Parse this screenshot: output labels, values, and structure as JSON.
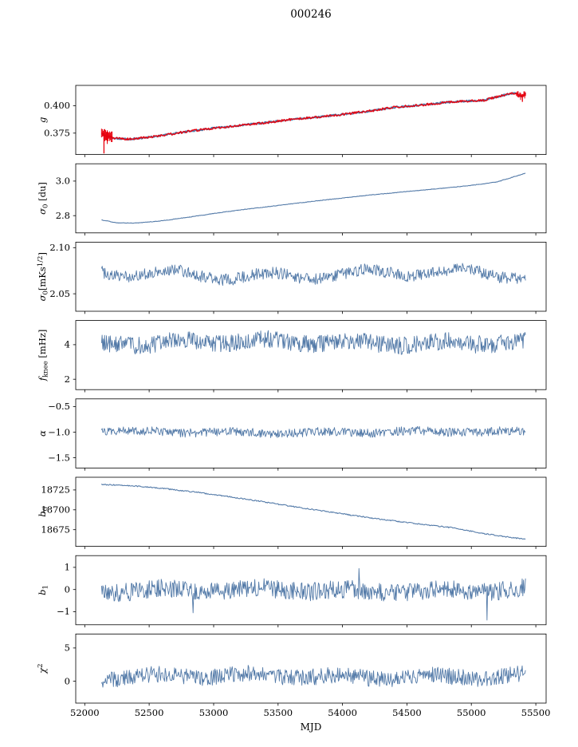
{
  "colors": {
    "blue": "#537aa8",
    "red": "#e8000d",
    "axis": "#000000",
    "background": "#ffffff"
  },
  "chart_data": {
    "type": "line",
    "title": "000246",
    "xlabel": "MJD",
    "xlim": [
      51930,
      55580
    ],
    "x_data_range": [
      52130,
      55420
    ],
    "xticks": [
      52000,
      52500,
      53000,
      53500,
      54000,
      54500,
      55000,
      55500
    ],
    "xtick_labels": [
      "52000",
      "52500",
      "53000",
      "53500",
      "54000",
      "54500",
      "55000",
      "55500"
    ],
    "legend": "none",
    "grid": false,
    "panels": [
      {
        "name": "g",
        "ylabel": [
          {
            "t": "g",
            "i": 1
          }
        ],
        "ylim": [
          0.3555,
          0.4185
        ],
        "yticks": [
          0.375,
          0.4
        ],
        "ytick_labels": [
          "0.375",
          "0.400"
        ],
        "series": [
          {
            "name": "g-model",
            "color": "blue",
            "kind": "trend",
            "lw": 2.0,
            "seed": 101,
            "noise": 0.0007,
            "points": [
              [
                52130,
                0.3745
              ],
              [
                52160,
                0.3725
              ],
              [
                52230,
                0.3705
              ],
              [
                52330,
                0.3695
              ],
              [
                52450,
                0.3705
              ],
              [
                52600,
                0.373
              ],
              [
                52800,
                0.3765
              ],
              [
                53000,
                0.3795
              ],
              [
                53200,
                0.382
              ],
              [
                53400,
                0.3845
              ],
              [
                53600,
                0.3875
              ],
              [
                53800,
                0.3895
              ],
              [
                54000,
                0.392
              ],
              [
                54200,
                0.395
              ],
              [
                54400,
                0.3985
              ],
              [
                54600,
                0.4005
              ],
              [
                54800,
                0.403
              ],
              [
                55000,
                0.4045
              ],
              [
                55100,
                0.405
              ],
              [
                55180,
                0.4075
              ],
              [
                55260,
                0.41
              ],
              [
                55340,
                0.4115
              ],
              [
                55390,
                0.4085
              ],
              [
                55420,
                0.411
              ]
            ]
          },
          {
            "name": "g-measured",
            "color": "red",
            "kind": "trend",
            "lw": 1.3,
            "seed": 102,
            "noise": 0.0011,
            "points": [
              [
                52130,
                0.3745
              ],
              [
                52160,
                0.3725
              ],
              [
                52230,
                0.3705
              ],
              [
                52330,
                0.3695
              ],
              [
                52450,
                0.3705
              ],
              [
                52600,
                0.373
              ],
              [
                52800,
                0.3765
              ],
              [
                53000,
                0.3795
              ],
              [
                53200,
                0.382
              ],
              [
                53400,
                0.3845
              ],
              [
                53600,
                0.3875
              ],
              [
                53800,
                0.3895
              ],
              [
                54000,
                0.392
              ],
              [
                54200,
                0.395
              ],
              [
                54400,
                0.3985
              ],
              [
                54600,
                0.4005
              ],
              [
                54800,
                0.403
              ],
              [
                55000,
                0.4045
              ],
              [
                55100,
                0.405
              ],
              [
                55180,
                0.4075
              ],
              [
                55260,
                0.41
              ],
              [
                55340,
                0.4115
              ],
              [
                55390,
                0.4085
              ],
              [
                55420,
                0.411
              ]
            ],
            "errorbars": [
              {
                "x0": 52130,
                "x1": 52215,
                "amp": 0.0042
              },
              {
                "x0": 55350,
                "x1": 55420,
                "amp": 0.0022
              }
            ],
            "spikes": [
              {
                "x": 52149,
                "y0": 0.3565,
                "y1": 0.3755
              },
              {
                "x": 55396,
                "y0": 0.4035,
                "y1": 0.4105
              }
            ]
          }
        ]
      },
      {
        "name": "sigma0-du",
        "ylabel": [
          {
            "t": "σ",
            "i": 1
          },
          {
            "t": "0",
            "sub": 1
          },
          {
            "t": " [du]"
          }
        ],
        "ylim": [
          2.7,
          3.1
        ],
        "yticks": [
          2.8,
          3.0
        ],
        "ytick_labels": [
          "2.8",
          "3.0"
        ],
        "series": [
          {
            "name": "sigma0-du",
            "color": "blue",
            "kind": "trend",
            "lw": 1.1,
            "seed": 201,
            "noise": 0.0015,
            "points": [
              [
                52130,
                2.775
              ],
              [
                52250,
                2.758
              ],
              [
                52400,
                2.757
              ],
              [
                52600,
                2.77
              ],
              [
                52800,
                2.79
              ],
              [
                53000,
                2.812
              ],
              [
                53200,
                2.832
              ],
              [
                53400,
                2.85
              ],
              [
                53600,
                2.868
              ],
              [
                53800,
                2.885
              ],
              [
                54000,
                2.902
              ],
              [
                54200,
                2.918
              ],
              [
                54400,
                2.932
              ],
              [
                54600,
                2.946
              ],
              [
                54800,
                2.96
              ],
              [
                55000,
                2.975
              ],
              [
                55200,
                2.995
              ],
              [
                55420,
                3.045
              ]
            ]
          }
        ]
      },
      {
        "name": "sigma0-mks",
        "ylabel": [
          {
            "t": "σ",
            "i": 1
          },
          {
            "t": "0",
            "sub": 1
          },
          {
            "t": "[mKs"
          },
          {
            "t": "1/2",
            "sup": 1
          },
          {
            "t": "]"
          }
        ],
        "ylim": [
          2.031,
          2.106
        ],
        "yticks": [
          2.05,
          2.1
        ],
        "ytick_labels": [
          "2.05",
          "2.10"
        ],
        "series": [
          {
            "name": "sigma0-mks",
            "color": "blue",
            "kind": "noise",
            "lw": 0.9,
            "seed": 301,
            "base": 2.071,
            "amp": 0.0065,
            "wander": 0.004,
            "n": 620
          }
        ]
      },
      {
        "name": "fknee",
        "ylabel": [
          {
            "t": "f",
            "i": 1
          },
          {
            "t": "knee",
            "sub": 1
          },
          {
            "t": " [mHz]"
          }
        ],
        "ylim": [
          1.4,
          5.4
        ],
        "yticks": [
          2,
          4
        ],
        "ytick_labels": [
          "2",
          "4"
        ],
        "series": [
          {
            "name": "fknee",
            "color": "blue",
            "kind": "noise",
            "lw": 0.9,
            "seed": 401,
            "base": 4.12,
            "amp": 0.52,
            "wander": 0.12,
            "n": 680
          }
        ]
      },
      {
        "name": "alpha",
        "ylabel": [
          {
            "t": "α",
            "i": 1
          }
        ],
        "ylim": [
          -1.7,
          -0.35
        ],
        "yticks": [
          -0.5,
          -1.0,
          -1.5
        ],
        "ytick_labels": [
          "−0.5",
          "−1.0",
          "−1.5"
        ],
        "series": [
          {
            "name": "alpha",
            "color": "blue",
            "kind": "noise",
            "lw": 0.9,
            "seed": 501,
            "base": -1.0,
            "amp": 0.085,
            "wander": 0.02,
            "n": 640
          }
        ]
      },
      {
        "name": "b0",
        "ylabel": [
          {
            "t": "b",
            "i": 1
          },
          {
            "t": "0",
            "sub": 1
          }
        ],
        "ylim": [
          18654,
          18741
        ],
        "yticks": [
          18675,
          18700,
          18725
        ],
        "ytick_labels": [
          "18675",
          "18700",
          "18725"
        ],
        "series": [
          {
            "name": "b0",
            "color": "blue",
            "kind": "trend",
            "lw": 1.1,
            "seed": 601,
            "noise": 0.7,
            "points": [
              [
                52130,
                18732
              ],
              [
                52350,
                18730.5
              ],
              [
                52600,
                18727
              ],
              [
                52850,
                18722.5
              ],
              [
                53100,
                18717
              ],
              [
                53350,
                18711
              ],
              [
                53600,
                18704.5
              ],
              [
                53850,
                18698.5
              ],
              [
                54100,
                18692.5
              ],
              [
                54350,
                18687
              ],
              [
                54600,
                18682
              ],
              [
                54850,
                18677.5
              ],
              [
                55100,
                18670
              ],
              [
                55250,
                18666.5
              ],
              [
                55420,
                18663
              ]
            ]
          }
        ]
      },
      {
        "name": "b1",
        "ylabel": [
          {
            "t": "b",
            "i": 1
          },
          {
            "t": "1",
            "sub": 1
          }
        ],
        "ylim": [
          -1.59,
          1.53
        ],
        "yticks": [
          -1,
          0,
          1
        ],
        "ytick_labels": [
          "−1",
          "0",
          "1"
        ],
        "series": [
          {
            "name": "b1",
            "color": "blue",
            "kind": "noise",
            "lw": 0.9,
            "seed": 701,
            "base": -0.03,
            "amp": 0.42,
            "wander": 0.08,
            "n": 640,
            "outliers": [
              [
                55120,
                -1.38
              ],
              [
                54130,
                0.95
              ],
              [
                52840,
                -1.05
              ]
            ]
          }
        ]
      },
      {
        "name": "chi2",
        "ylabel": [
          {
            "t": "χ",
            "i": 1
          },
          {
            "t": "2",
            "sup": 1
          }
        ],
        "ylim": [
          -3.3,
          7.1
        ],
        "yticks": [
          0,
          5
        ],
        "ytick_labels": [
          "0",
          "5"
        ],
        "series": [
          {
            "name": "chi2",
            "color": "blue",
            "kind": "noise",
            "lw": 0.9,
            "seed": 801,
            "base": 0.7,
            "amp": 1.25,
            "wander": 0.3,
            "n": 640
          }
        ]
      }
    ]
  }
}
